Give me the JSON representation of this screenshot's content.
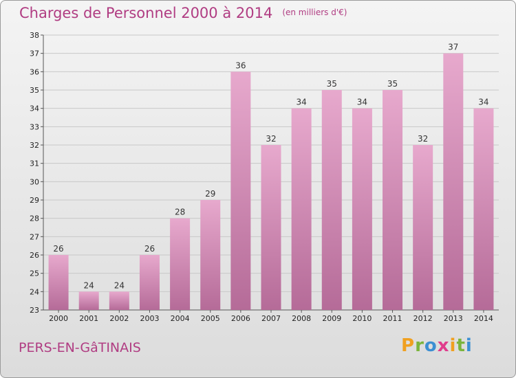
{
  "header": {
    "title": "Charges de Personnel 2000 à 2014",
    "subtitle": "(en milliers d'€)"
  },
  "footer": {
    "place": "PERS-EN-GâTINAIS",
    "logo_letters": [
      "P",
      "r",
      "o",
      "x",
      "i",
      "t",
      "i"
    ],
    "logo_colors": [
      "#f0a020",
      "#7ab43c",
      "#3c8fd2",
      "#e03c8c",
      "#f0a020",
      "#7ab43c",
      "#3c8fd2"
    ]
  },
  "colors": {
    "accent": "#b03c82",
    "bar_top": "#e7a9cd",
    "bar_bottom": "#b56b98"
  },
  "chart_data": {
    "type": "bar",
    "title": "Charges de Personnel 2000 à 2014",
    "subtitle": "(en milliers d'€)",
    "categories": [
      "2000",
      "2001",
      "2002",
      "2003",
      "2004",
      "2005",
      "2006",
      "2007",
      "2008",
      "2009",
      "2010",
      "2011",
      "2012",
      "2013",
      "2014"
    ],
    "values": [
      26,
      24,
      24,
      26,
      28,
      29,
      36,
      32,
      34,
      35,
      34,
      35,
      32,
      37,
      34
    ],
    "ylim": [
      23,
      38
    ],
    "yticks": [
      23,
      24,
      25,
      26,
      27,
      28,
      29,
      30,
      31,
      32,
      33,
      34,
      35,
      36,
      37,
      38
    ],
    "grid": true,
    "xlabel": "",
    "ylabel": ""
  }
}
